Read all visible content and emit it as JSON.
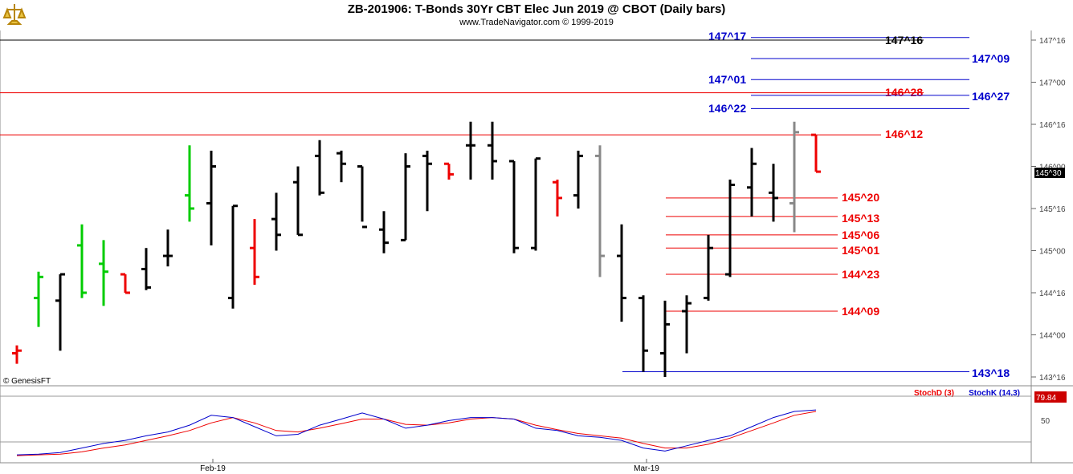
{
  "header": {
    "title": "ZB-201906:  T-Bonds 30Yr CBT Elec Jun 2019 @ CBOT  (Daily bars)",
    "subtitle": "www.TradeNavigator.com © 1999-2019"
  },
  "copyright": "© GenesisFT",
  "colors": {
    "up": "#00cc00",
    "down": "#ee0000",
    "neutral": "#000000",
    "gray": "#888888",
    "blue": "#0000cc",
    "red": "#ee0000"
  },
  "chart_data": {
    "type": "ohlc",
    "price_unit": "32nds",
    "y_ticks": [
      "147^16",
      "147^00",
      "146^16",
      "146^00",
      "145^16",
      "145^00",
      "144^16",
      "144^00",
      "143^16"
    ],
    "x_ticks": [
      "Feb-19",
      "Mar-19"
    ],
    "last_price": "145^30",
    "bars": [
      {
        "o": "143^25",
        "h": "143^28",
        "l": "143^21",
        "c": "143^26",
        "color": "red"
      },
      {
        "o": "144^14",
        "h": "144^24",
        "l": "144^03",
        "c": "144^22",
        "color": "green"
      },
      {
        "o": "144^13",
        "h": "144^23",
        "l": "143^26",
        "c": "144^23",
        "color": "black"
      },
      {
        "o": "145^02",
        "h": "145^10",
        "l": "144^14",
        "c": "144^16",
        "color": "green"
      },
      {
        "o": "144^27",
        "h": "145^04",
        "l": "144^11",
        "c": "144^24",
        "color": "green"
      },
      {
        "o": "144^23",
        "h": "144^23",
        "l": "144^16",
        "c": "144^16",
        "color": "red"
      },
      {
        "o": "144^25",
        "h": "145^01",
        "l": "144^17",
        "c": "144^18",
        "color": "black"
      },
      {
        "o": "144^30",
        "h": "145^08",
        "l": "144^26",
        "c": "144^30",
        "color": "black"
      },
      {
        "o": "145^21",
        "h": "146^08",
        "l": "145^11",
        "c": "145^16",
        "color": "green"
      },
      {
        "o": "145^18",
        "h": "146^06",
        "l": "145^02",
        "c": "146^00",
        "color": "black"
      },
      {
        "o": "144^14",
        "h": "145^17",
        "l": "144^10",
        "c": "145^17",
        "color": "black"
      },
      {
        "o": "145^01",
        "h": "145^12",
        "l": "144^19",
        "c": "144^22",
        "color": "red"
      },
      {
        "o": "145^12",
        "h": "145^22",
        "l": "145^00",
        "c": "145^06",
        "color": "black"
      },
      {
        "o": "145^26",
        "h": "146^00",
        "l": "145^06",
        "c": "145^06",
        "color": "black"
      },
      {
        "o": "146^04",
        "h": "146^10",
        "l": "145^21",
        "c": "145^22",
        "color": "black"
      },
      {
        "o": "146^05",
        "h": "146^06",
        "l": "145^26",
        "c": "146^01",
        "color": "black"
      },
      {
        "o": "146^00",
        "h": "146^00",
        "l": "145^11",
        "c": "145^09",
        "color": "black"
      },
      {
        "o": "145^08",
        "h": "145^15",
        "l": "144^31",
        "c": "145^03",
        "color": "black"
      },
      {
        "o": "145^04",
        "h": "146^05",
        "l": "145^04",
        "c": "146^00",
        "color": "black"
      },
      {
        "o": "146^04",
        "h": "146^06",
        "l": "145^15",
        "c": "146^01",
        "color": "black"
      },
      {
        "o": "146^01",
        "h": "146^01",
        "l": "145^27",
        "c": "145^29",
        "color": "red"
      },
      {
        "o": "146^08",
        "h": "146^17",
        "l": "145^27",
        "c": "146^08",
        "color": "black"
      },
      {
        "o": "146^08",
        "h": "146^17",
        "l": "145^27",
        "c": "146^02",
        "color": "black"
      },
      {
        "o": "146^02",
        "h": "146^02",
        "l": "144^31",
        "c": "145^01",
        "color": "black"
      },
      {
        "o": "145^01",
        "h": "146^03",
        "l": "145^00",
        "c": "146^03",
        "color": "black"
      },
      {
        "o": "145^26",
        "h": "145^27",
        "l": "145^13",
        "c": "145^20",
        "color": "red"
      },
      {
        "o": "145^21",
        "h": "146^06",
        "l": "145^16",
        "c": "146^04",
        "color": "black"
      },
      {
        "o": "146^04",
        "h": "146^08",
        "l": "144^22",
        "c": "144^30",
        "color": "gray"
      },
      {
        "o": "144^30",
        "h": "145^10",
        "l": "144^05",
        "c": "144^14",
        "color": "black"
      },
      {
        "o": "144^14",
        "h": "144^15",
        "l": "143^18",
        "c": "143^26",
        "color": "black"
      },
      {
        "o": "143^25",
        "h": "144^13",
        "l": "143^16",
        "c": "144^04",
        "color": "black"
      },
      {
        "o": "144^09",
        "h": "144^15",
        "l": "143^25",
        "c": "144^12",
        "color": "black"
      },
      {
        "o": "144^14",
        "h": "145^06",
        "l": "144^13",
        "c": "145^01",
        "color": "black"
      },
      {
        "o": "144^23",
        "h": "145^27",
        "l": "144^22",
        "c": "145^25",
        "color": "black"
      },
      {
        "o": "145^24",
        "h": "146^07",
        "l": "145^13",
        "c": "146^01",
        "color": "black"
      },
      {
        "o": "145^22",
        "h": "146^01",
        "l": "145^11",
        "c": "145^20",
        "color": "black"
      },
      {
        "o": "145^18",
        "h": "146^17",
        "l": "145^07",
        "c": "146^13",
        "color": "gray"
      },
      {
        "o": "146^12",
        "h": "146^12",
        "l": "145^30",
        "c": "145^30",
        "color": "red"
      }
    ],
    "levels": [
      {
        "price": "147^17",
        "label": "147^17",
        "color": "blue",
        "label_side": "left"
      },
      {
        "price": "147^16",
        "label": "147^16",
        "color": "black",
        "label_side": "right"
      },
      {
        "price": "147^09",
        "label": "147^09",
        "color": "blue",
        "label_side": "right"
      },
      {
        "price": "147^01",
        "label": "147^01",
        "color": "blue",
        "label_side": "left"
      },
      {
        "price": "146^28",
        "label": "146^28",
        "color": "red",
        "label_side": "right"
      },
      {
        "price": "146^27",
        "label": "146^27",
        "color": "blue",
        "label_side": "right"
      },
      {
        "price": "146^22",
        "label": "146^22",
        "color": "blue",
        "label_side": "left"
      },
      {
        "price": "146^12",
        "label": "146^12",
        "color": "red",
        "label_side": "right"
      },
      {
        "price": "145^20",
        "label": "145^20",
        "color": "red",
        "label_side": "right"
      },
      {
        "price": "145^13",
        "label": "145^13",
        "color": "red",
        "label_side": "right"
      },
      {
        "price": "145^06",
        "label": "145^06",
        "color": "red",
        "label_side": "right"
      },
      {
        "price": "145^01",
        "label": "145^01",
        "color": "red",
        "label_side": "right"
      },
      {
        "price": "144^23",
        "label": "144^23",
        "color": "red",
        "label_side": "right"
      },
      {
        "price": "144^09",
        "label": "144^09",
        "color": "red",
        "label_side": "right"
      },
      {
        "price": "143^18",
        "label": "143^18",
        "color": "blue",
        "label_side": "right"
      }
    ],
    "stochastic": {
      "d_label": "StochD (3)",
      "k_label": "StochK (14,3)",
      "last_value": "79.84",
      "y_ticks": [
        "50"
      ],
      "k": [
        3,
        4,
        6,
        12,
        18,
        22,
        28,
        33,
        42,
        55,
        52,
        40,
        28,
        30,
        42,
        50,
        58,
        50,
        38,
        42,
        48,
        52,
        52,
        50,
        38,
        35,
        28,
        26,
        22,
        12,
        8,
        15,
        22,
        28,
        40,
        52,
        60,
        62
      ],
      "d": [
        2,
        3,
        4,
        7,
        12,
        16,
        22,
        28,
        35,
        45,
        52,
        45,
        35,
        33,
        38,
        44,
        50,
        50,
        43,
        42,
        45,
        50,
        52,
        50,
        42,
        36,
        31,
        28,
        25,
        18,
        12,
        12,
        17,
        25,
        35,
        45,
        55,
        60
      ]
    }
  }
}
